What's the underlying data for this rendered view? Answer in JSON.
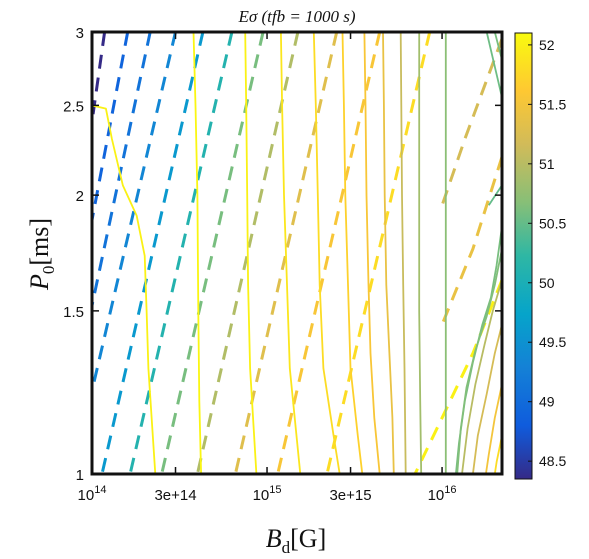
{
  "chart_data": {
    "type": "contour",
    "title": "Eσ (tfb = 1000 s)",
    "xlabel": "Bd[G]",
    "ylabel": "P0[ms]",
    "xscale": "log",
    "yscale": "log",
    "xlim": [
      100000000000000.0,
      2.2e+16
    ],
    "ylim": [
      1,
      3
    ],
    "x_ticks": [
      {
        "value": 100000000000000.0,
        "label": "10^14"
      },
      {
        "value": 300000000000000.0,
        "label": "3e+14"
      },
      {
        "value": 1000000000000000.0,
        "label": "10^15"
      },
      {
        "value": 3000000000000000.0,
        "label": "3e+15"
      },
      {
        "value": 1e+16,
        "label": "10^16"
      }
    ],
    "y_ticks": [
      {
        "value": 1,
        "label": "1"
      },
      {
        "value": 1.5,
        "label": "1.5"
      },
      {
        "value": 2,
        "label": "2"
      },
      {
        "value": 2.5,
        "label": "2.5"
      },
      {
        "value": 3,
        "label": "3"
      }
    ],
    "colorbar": {
      "range": [
        48.35,
        52.1
      ],
      "ticks": [
        "48.5",
        "49",
        "49.5",
        "50",
        "50.5",
        "51",
        "51.5",
        "52"
      ],
      "colormap": "parula"
    },
    "dashed_contours": [
      {
        "level": 48.35,
        "points": [
          [
            118000000000000.0,
            3.0
          ],
          [
            100000000000000.0,
            2.4
          ]
        ]
      },
      {
        "level": 48.9,
        "points": [
          [
            160000000000000.0,
            3.0
          ],
          [
            100000000000000.0,
            1.88
          ]
        ]
      },
      {
        "level": 49.1,
        "points": [
          [
            215000000000000.0,
            3.0
          ],
          [
            100000000000000.0,
            1.52
          ]
        ]
      },
      {
        "level": 49.35,
        "points": [
          [
            300000000000000.0,
            3.0
          ],
          [
            100000000000000.0,
            1.23
          ]
        ]
      },
      {
        "level": 49.6,
        "points": [
          [
            430000000000000.0,
            3.0
          ],
          [
            114000000000000.0,
            1.0
          ]
        ]
      },
      {
        "level": 50.1,
        "points": [
          [
            630000000000000.0,
            3.0
          ],
          [
            165000000000000.0,
            1.0
          ]
        ]
      },
      {
        "level": 50.6,
        "points": [
          [
            950000000000000.0,
            3.0
          ],
          [
            250000000000000.0,
            1.0
          ]
        ]
      },
      {
        "level": 50.95,
        "points": [
          [
            1500000000000000.0,
            3.0
          ],
          [
            400000000000000.0,
            1.0
          ]
        ]
      },
      {
        "level": 51.3,
        "points": [
          [
            2500000000000000.0,
            3.0
          ],
          [
            660000000000000.0,
            1.0
          ]
        ]
      },
      {
        "level": 51.55,
        "points": [
          [
            4400000000000000.0,
            3.0
          ],
          [
            1150000000000000.0,
            1.0
          ]
        ]
      },
      {
        "level": 51.8,
        "points": [
          [
            8500000000000000.0,
            3.0
          ],
          [
            2200000000000000.0,
            1.0
          ]
        ]
      },
      {
        "level": 51.2,
        "points": [
          [
            2.2e+16,
            2.95
          ],
          [
            1.35e+16,
            2.3
          ],
          [
            1e+16,
            1.95
          ]
        ]
      },
      {
        "level": 51.4,
        "points": [
          [
            2.2e+16,
            2.2
          ],
          [
            1.5e+16,
            1.75
          ],
          [
            1e+16,
            1.45
          ]
        ]
      },
      {
        "level": 52.0,
        "points": [
          [
            2.2e+16,
            1.62
          ],
          [
            1.5e+16,
            1.35
          ],
          [
            1e+16,
            1.15
          ],
          [
            7000000000000000.0,
            1.0
          ]
        ]
      }
    ],
    "solid_contours": [
      {
        "level": 52.0,
        "points": [
          [
            100000000000000.0,
            2.5
          ],
          [
            120000000000000.0,
            2.48
          ],
          [
            130000000000000.0,
            2.3
          ],
          [
            150000000000000.0,
            2.05
          ],
          [
            180000000000000.0,
            1.9
          ],
          [
            200000000000000.0,
            1.72
          ],
          [
            205000000000000.0,
            1.5
          ],
          [
            210000000000000.0,
            1.3
          ],
          [
            230000000000000.0,
            1.0
          ]
        ]
      },
      {
        "level": 52.05,
        "points": [
          [
            380000000000000.0,
            3.0
          ],
          [
            390000000000000.0,
            2.5
          ],
          [
            400000000000000.0,
            2.0
          ],
          [
            405000000000000.0,
            1.5
          ],
          [
            410000000000000.0,
            1.2
          ],
          [
            420000000000000.0,
            1.0
          ]
        ]
      },
      {
        "level": 52.0,
        "points": [
          [
            750000000000000.0,
            3.0
          ],
          [
            760000000000000.0,
            2.5
          ],
          [
            770000000000000.0,
            2.0
          ],
          [
            780000000000000.0,
            1.6
          ],
          [
            800000000000000.0,
            1.3
          ],
          [
            870000000000000.0,
            1.0
          ]
        ]
      },
      {
        "level": 51.9,
        "points": [
          [
            1200000000000000.0,
            3.0
          ],
          [
            1220000000000000.0,
            2.5
          ],
          [
            1250000000000000.0,
            2.0
          ],
          [
            1300000000000000.0,
            1.6
          ],
          [
            1350000000000000.0,
            1.3
          ],
          [
            1550000000000000.0,
            1.0
          ]
        ]
      },
      {
        "level": 51.8,
        "points": [
          [
            1850000000000000.0,
            3.0
          ],
          [
            1900000000000000.0,
            2.5
          ],
          [
            1950000000000000.0,
            2.0
          ],
          [
            2000000000000000.0,
            1.6
          ],
          [
            2100000000000000.0,
            1.3
          ],
          [
            2400000000000000.0,
            1.1
          ],
          [
            2600000000000000.0,
            1.0
          ]
        ]
      },
      {
        "level": 51.7,
        "points": [
          [
            2700000000000000.0,
            3.0
          ],
          [
            2750000000000000.0,
            2.5
          ],
          [
            2800000000000000.0,
            2.0
          ],
          [
            2900000000000000.0,
            1.6
          ],
          [
            3000000000000000.0,
            1.3
          ],
          [
            3300000000000000.0,
            1.1
          ],
          [
            3500000000000000.0,
            1.0
          ]
        ]
      },
      {
        "level": 51.55,
        "points": [
          [
            3600000000000000.0,
            3.0
          ],
          [
            3650000000000000.0,
            2.5
          ],
          [
            3700000000000000.0,
            2.0
          ],
          [
            3800000000000000.0,
            1.6
          ],
          [
            3900000000000000.0,
            1.35
          ],
          [
            4100000000000000.0,
            1.15
          ],
          [
            4400000000000000.0,
            1.0
          ]
        ]
      },
      {
        "level": 51.4,
        "points": [
          [
            4600000000000000.0,
            3.0
          ],
          [
            4650000000000000.0,
            2.5
          ],
          [
            4700000000000000.0,
            2.0
          ],
          [
            4800000000000000.0,
            1.6
          ],
          [
            5000000000000000.0,
            1.35
          ],
          [
            5200000000000000.0,
            1.15
          ],
          [
            5300000000000000.0,
            1.0
          ]
        ]
      },
      {
        "level": 51.1,
        "points": [
          [
            5800000000000000.0,
            3.0
          ],
          [
            5850000000000000.0,
            2.5
          ],
          [
            5900000000000000.0,
            2.0
          ],
          [
            6000000000000000.0,
            1.6
          ],
          [
            6100000000000000.0,
            1.3
          ],
          [
            6200000000000000.0,
            1.0
          ]
        ]
      },
      {
        "level": 50.85,
        "points": [
          [
            7400000000000000.0,
            3.0
          ],
          [
            7400000000000000.0,
            2.5
          ],
          [
            7400000000000000.0,
            2.0
          ],
          [
            7400000000000000.0,
            1.5
          ],
          [
            7500000000000000.0,
            1.2
          ],
          [
            7600000000000000.0,
            1.0
          ]
        ]
      },
      {
        "level": 50.7,
        "points": [
          [
            1.05e+16,
            3.0
          ],
          [
            1.05e+16,
            2.5
          ],
          [
            1.05e+16,
            2.0
          ],
          [
            1.05e+16,
            1.6
          ],
          [
            1.05e+16,
            1.3
          ],
          [
            1.05e+16,
            1.0
          ]
        ]
      },
      {
        "level": 51.0,
        "points": [
          [
            2.2e+16,
            1.62
          ],
          [
            1.95e+16,
            1.5
          ],
          [
            1.75e+16,
            1.38
          ],
          [
            1.55e+16,
            1.25
          ],
          [
            1.4e+16,
            1.12
          ],
          [
            1.3e+16,
            1.0
          ]
        ]
      },
      {
        "level": 51.2,
        "points": [
          [
            2.2e+16,
            1.45
          ],
          [
            2e+16,
            1.35
          ],
          [
            1.8e+16,
            1.22
          ],
          [
            1.6e+16,
            1.1
          ],
          [
            1.5e+16,
            1.0
          ]
        ]
      },
      {
        "level": 51.5,
        "points": [
          [
            2.2e+16,
            1.25
          ],
          [
            2e+16,
            1.15
          ],
          [
            1.85e+16,
            1.05
          ],
          [
            1.78e+16,
            1.0
          ]
        ]
      },
      {
        "level": 51.8,
        "points": [
          [
            2.2e+16,
            1.1
          ],
          [
            2.05e+16,
            1.03
          ],
          [
            2e+16,
            1.0
          ]
        ]
      },
      {
        "level": 50.6,
        "points": [
          [
            2.2e+16,
            1.85
          ],
          [
            2.05e+16,
            1.68
          ],
          [
            1.9e+16,
            1.55
          ],
          [
            1.7e+16,
            1.45
          ],
          [
            1.5e+16,
            1.32
          ],
          [
            1.35e+16,
            1.2
          ],
          [
            1.25e+16,
            1.08
          ],
          [
            1.2e+16,
            1.0
          ]
        ]
      },
      {
        "level": 50.65,
        "points": [
          [
            2.2e+16,
            1.75
          ],
          [
            2e+16,
            1.6
          ],
          [
            1.8e+16,
            1.48
          ],
          [
            1.55e+16,
            1.36
          ],
          [
            1.38e+16,
            1.24
          ],
          [
            1.28e+16,
            1.12
          ],
          [
            1.22e+16,
            1.0
          ]
        ]
      },
      {
        "level": 50.55,
        "points": [
          [
            1.8e+16,
            3.0
          ],
          [
            2.2e+16,
            2.55
          ]
        ]
      },
      {
        "level": 50.6,
        "points": [
          [
            2e+16,
            3.0
          ],
          [
            2.2e+16,
            2.8
          ]
        ]
      },
      {
        "level": 50.5,
        "points": [
          [
            1.85e+16,
            1.95
          ],
          [
            2.2e+16,
            2.05
          ],
          [
            2.2e+16,
            1.9
          ]
        ]
      }
    ]
  }
}
